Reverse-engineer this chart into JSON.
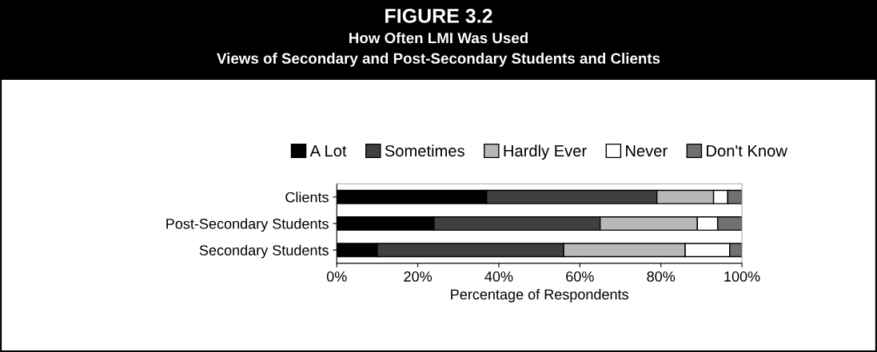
{
  "chart_data": {
    "type": "bar",
    "orientation": "horizontal",
    "stacked": true,
    "title": "FIGURE 3.2",
    "subtitle": "How Often LMI Was Used\nViews of Secondary and Post-Secondary Students and Clients",
    "xlabel": "Percentage of Respondents",
    "categories": [
      "Clients",
      "Post-Secondary Students",
      "Secondary Students"
    ],
    "series": [
      {
        "name": "A Lot",
        "color": "#000000",
        "values": [
          37,
          24,
          10
        ]
      },
      {
        "name": "Sometimes",
        "color": "#404040",
        "values": [
          42,
          41,
          46
        ]
      },
      {
        "name": "Hardly Ever",
        "color": "#b8b8b8",
        "values": [
          14,
          24,
          30
        ]
      },
      {
        "name": "Never",
        "color": "#ffffff",
        "values": [
          3.5,
          5,
          11
        ]
      },
      {
        "name": "Don't Know",
        "color": "#707070",
        "values": [
          3.5,
          6,
          3
        ]
      }
    ],
    "xlim": [
      0,
      100
    ],
    "xticks": [
      {
        "value": 0,
        "label": "0%"
      },
      {
        "value": 20,
        "label": "20%"
      },
      {
        "value": 40,
        "label": "40%"
      },
      {
        "value": 60,
        "label": "60%"
      },
      {
        "value": 80,
        "label": "80%"
      },
      {
        "value": 100,
        "label": "100%"
      }
    ],
    "grid": false,
    "legend": "top"
  }
}
